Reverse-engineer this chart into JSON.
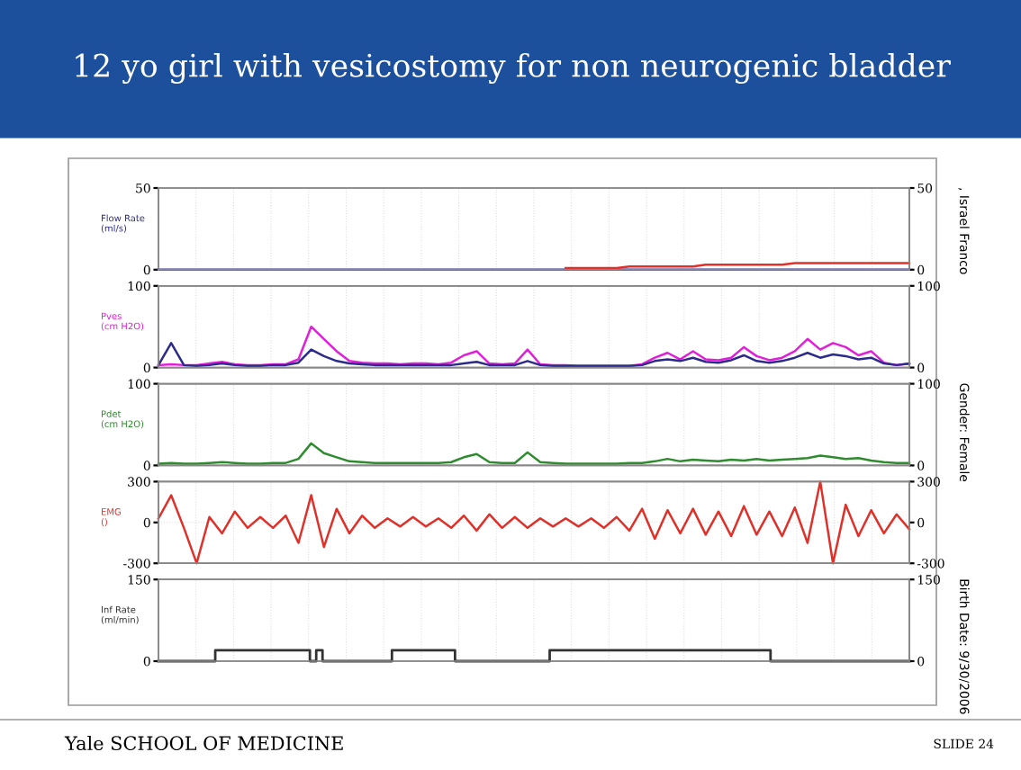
{
  "chart_data": [
    {
      "type": "line",
      "title": "12 yo girl with vesicostomy for non neurogenic bladder",
      "ylabel": "Flow Rate\n(ml/s)",
      "categories": [
        null,
        null,
        null,
        null,
        null,
        null,
        null,
        null,
        null,
        null,
        null,
        null,
        null,
        null,
        null,
        null,
        null,
        null,
        null,
        null,
        null,
        null,
        null,
        null,
        null,
        null,
        null,
        null,
        null,
        null,
        null,
        null,
        null,
        null,
        null,
        null,
        null,
        null,
        null,
        null,
        null,
        null,
        null,
        null,
        null,
        null,
        null,
        null,
        null,
        null,
        null,
        null,
        null,
        null,
        null,
        null,
        null,
        null,
        null,
        null
      ],
      "series": [
        {
          "color": "#2b2b8c",
          "values": [
            0,
            0,
            0,
            0,
            0,
            0,
            0,
            0,
            0,
            0,
            0,
            0,
            0,
            0,
            0,
            0,
            0,
            0,
            0,
            0,
            0,
            0,
            0,
            0,
            0,
            0,
            0,
            0,
            0,
            0,
            0,
            0,
            0,
            0,
            0,
            0,
            0,
            0,
            0,
            0,
            0,
            0,
            0,
            0,
            0,
            0,
            0,
            0,
            0,
            0,
            0,
            0,
            0,
            0,
            0,
            0,
            0,
            0,
            0,
            0
          ]
        },
        {
          "color": "#e0302a",
          "values": [
            null,
            null,
            null,
            null,
            null,
            null,
            null,
            null,
            null,
            null,
            null,
            null,
            null,
            null,
            null,
            null,
            null,
            null,
            null,
            null,
            null,
            null,
            null,
            null,
            null,
            null,
            null,
            null,
            null,
            null,
            null,
            null,
            1,
            1,
            1,
            1,
            1,
            2,
            2,
            2,
            2,
            2,
            2,
            3,
            3,
            3,
            3,
            3,
            3,
            3,
            4,
            4,
            4,
            4,
            4,
            4,
            4,
            4,
            4,
            4
          ]
        }
      ],
      "ylim": [
        0,
        50
      ],
      "yticks": [
        0,
        50
      ],
      "y2lim": [
        0,
        50
      ],
      "y2ticks": [
        0,
        50
      ],
      "grid": true,
      "tick_labels": "y",
      "annotations": [
        ", Israel Franco"
      ]
    },
    {
      "type": "line",
      "ylabel": "Pves\n(cm H2O)",
      "categories": [
        null,
        null,
        null,
        null,
        null,
        null,
        null,
        null,
        null,
        null,
        null,
        null,
        null,
        null,
        null,
        null,
        null,
        null,
        null,
        null,
        null,
        null,
        null,
        null,
        null,
        null,
        null,
        null,
        null,
        null,
        null,
        null,
        null,
        null,
        null,
        null,
        null,
        null,
        null,
        null,
        null,
        null,
        null,
        null,
        null,
        null,
        null,
        null,
        null,
        null,
        null,
        null,
        null,
        null,
        null,
        null,
        null,
        null,
        null,
        null
      ],
      "series": [
        {
          "color": "#e020d8",
          "values": [
            3,
            4,
            3,
            3,
            5,
            7,
            4,
            3,
            3,
            4,
            4,
            10,
            50,
            35,
            20,
            8,
            6,
            5,
            5,
            4,
            5,
            5,
            4,
            6,
            15,
            20,
            5,
            4,
            5,
            22,
            4,
            3,
            3,
            2,
            2,
            2,
            2,
            2,
            4,
            12,
            18,
            10,
            20,
            10,
            9,
            12,
            25,
            14,
            9,
            12,
            20,
            35,
            22,
            30,
            25,
            15,
            20,
            6,
            3,
            5
          ]
        },
        {
          "color": "#2b2b8c",
          "values": [
            3,
            30,
            3,
            2,
            3,
            5,
            3,
            2,
            2,
            3,
            3,
            6,
            22,
            14,
            8,
            5,
            4,
            3,
            3,
            3,
            3,
            3,
            3,
            3,
            5,
            7,
            3,
            3,
            3,
            8,
            3,
            2,
            2,
            2,
            2,
            2,
            2,
            2,
            3,
            8,
            10,
            8,
            12,
            7,
            6,
            9,
            15,
            8,
            6,
            8,
            12,
            18,
            12,
            16,
            14,
            10,
            12,
            5,
            3,
            5
          ]
        }
      ],
      "ylim": [
        0,
        100
      ],
      "yticks": [
        0,
        100
      ],
      "y2lim": [
        0,
        100
      ],
      "y2ticks": [
        0,
        100
      ],
      "grid": true,
      "tick_labels": "y"
    },
    {
      "type": "line",
      "ylabel": "Pdet\n(cm H2O)",
      "categories": [
        null,
        null,
        null,
        null,
        null,
        null,
        null,
        null,
        null,
        null,
        null,
        null,
        null,
        null,
        null,
        null,
        null,
        null,
        null,
        null,
        null,
        null,
        null,
        null,
        null,
        null,
        null,
        null,
        null,
        null,
        null,
        null,
        null,
        null,
        null,
        null,
        null,
        null,
        null,
        null,
        null,
        null,
        null,
        null,
        null,
        null,
        null,
        null,
        null,
        null,
        null,
        null,
        null,
        null,
        null,
        null,
        null,
        null,
        null,
        null
      ],
      "series": [
        {
          "color": "#2e8b2e",
          "values": [
            2,
            3,
            2,
            2,
            3,
            4,
            3,
            2,
            2,
            3,
            3,
            8,
            27,
            15,
            10,
            5,
            4,
            3,
            3,
            3,
            3,
            3,
            3,
            4,
            10,
            14,
            4,
            3,
            3,
            16,
            4,
            3,
            2,
            2,
            2,
            2,
            2,
            3,
            3,
            5,
            8,
            5,
            7,
            6,
            5,
            7,
            6,
            8,
            6,
            7,
            8,
            9,
            12,
            10,
            8,
            9,
            6,
            4,
            3,
            3
          ]
        }
      ],
      "ylim": [
        0,
        100
      ],
      "yticks": [
        0,
        100
      ],
      "y2lim": [
        0,
        100
      ],
      "y2ticks": [
        0,
        100
      ],
      "grid": true,
      "tick_labels": "y",
      "annotations": [
        "Gender: Female"
      ]
    },
    {
      "type": "line",
      "ylabel": "EMG\n()",
      "categories": [
        null,
        null,
        null,
        null,
        null,
        null,
        null,
        null,
        null,
        null,
        null,
        null,
        null,
        null,
        null,
        null,
        null,
        null,
        null,
        null,
        null,
        null,
        null,
        null,
        null,
        null,
        null,
        null,
        null,
        null,
        null,
        null,
        null,
        null,
        null,
        null,
        null,
        null,
        null,
        null,
        null,
        null,
        null,
        null,
        null,
        null,
        null,
        null,
        null,
        null,
        null,
        null,
        null,
        null,
        null,
        null,
        null,
        null,
        null,
        null
      ],
      "series": [
        {
          "color": "#e0302a",
          "values": [
            30,
            200,
            -40,
            -300,
            40,
            -80,
            80,
            -40,
            40,
            -40,
            50,
            -150,
            200,
            -180,
            100,
            -80,
            50,
            -40,
            30,
            -30,
            40,
            -30,
            30,
            -40,
            50,
            -60,
            60,
            -40,
            40,
            -40,
            30,
            -30,
            30,
            -30,
            30,
            -40,
            40,
            -60,
            100,
            -120,
            90,
            -80,
            100,
            -90,
            80,
            -100,
            120,
            -90,
            80,
            -100,
            110,
            -150,
            300,
            -300,
            130,
            -100,
            90,
            -80,
            60,
            -50
          ]
        }
      ],
      "ylim": [
        -300,
        300
      ],
      "yticks": [
        {
          "value": -300,
          "label": "-300"
        },
        0,
        300
      ],
      "y2lim": [
        -300,
        300
      ],
      "y2ticks": [
        {
          "value": -300,
          "label": "-300"
        },
        0,
        300
      ],
      "grid": true,
      "tick_labels": "y"
    },
    {
      "type": "step",
      "ylabel": "Inf Rate\n(ml/min)",
      "categories": [
        null,
        null,
        null,
        null,
        null,
        null,
        null,
        null,
        null,
        null,
        null,
        null,
        null,
        null,
        null,
        null,
        null,
        null,
        null,
        null,
        null,
        null,
        null,
        null,
        null,
        null,
        null,
        null,
        null,
        null,
        null,
        null,
        null,
        null,
        null,
        null,
        null,
        null,
        null,
        null,
        null,
        null,
        null,
        null,
        null,
        null,
        null,
        null,
        null,
        null,
        null,
        null,
        null,
        null,
        null,
        null,
        null,
        null,
        null,
        null,
        null,
        null,
        null,
        null,
        null,
        null,
        null,
        null,
        null,
        null,
        null,
        null,
        null,
        null,
        null,
        null,
        null,
        null,
        null,
        null,
        null,
        null,
        null,
        null,
        null,
        null,
        null,
        null,
        null,
        null,
        null,
        null,
        null,
        null,
        null,
        null,
        null,
        null,
        null,
        null,
        null,
        null,
        null,
        null,
        null,
        null,
        null,
        null,
        null,
        null,
        null,
        null,
        null,
        null,
        null,
        null,
        null,
        null,
        null,
        null
      ],
      "series": [
        {
          "color": "#333333",
          "values": [
            0,
            0,
            0,
            0,
            0,
            0,
            0,
            0,
            0,
            20,
            20,
            20,
            20,
            20,
            20,
            20,
            20,
            20,
            20,
            20,
            20,
            20,
            20,
            20,
            0,
            20,
            0,
            0,
            0,
            0,
            0,
            0,
            0,
            0,
            0,
            0,
            0,
            20,
            20,
            20,
            20,
            20,
            20,
            20,
            20,
            20,
            20,
            0,
            0,
            0,
            0,
            0,
            0,
            0,
            0,
            0,
            0,
            0,
            0,
            0,
            0,
            0,
            20,
            20,
            20,
            20,
            20,
            20,
            20,
            20,
            20,
            20,
            20,
            20,
            20,
            20,
            20,
            20,
            20,
            20,
            20,
            20,
            20,
            20,
            20,
            20,
            20,
            20,
            20,
            20,
            20,
            20,
            20,
            20,
            20,
            20,
            20,
            0,
            0,
            0,
            0,
            0,
            0,
            0,
            0,
            0,
            0,
            0,
            0,
            0,
            0,
            0,
            0,
            0,
            0,
            0,
            0,
            0,
            0,
            0
          ]
        }
      ],
      "ylim": [
        0,
        150
      ],
      "yticks": [
        0,
        150
      ],
      "y2lim": [
        0,
        150
      ],
      "y2ticks": [
        0,
        150
      ],
      "grid": true,
      "tick_labels": "y",
      "annotations": [
        "Birth Date: 9/30/2006",
        "Yale SCHOOL OF MEDICINE",
        "SLIDE 24"
      ]
    }
  ]
}
